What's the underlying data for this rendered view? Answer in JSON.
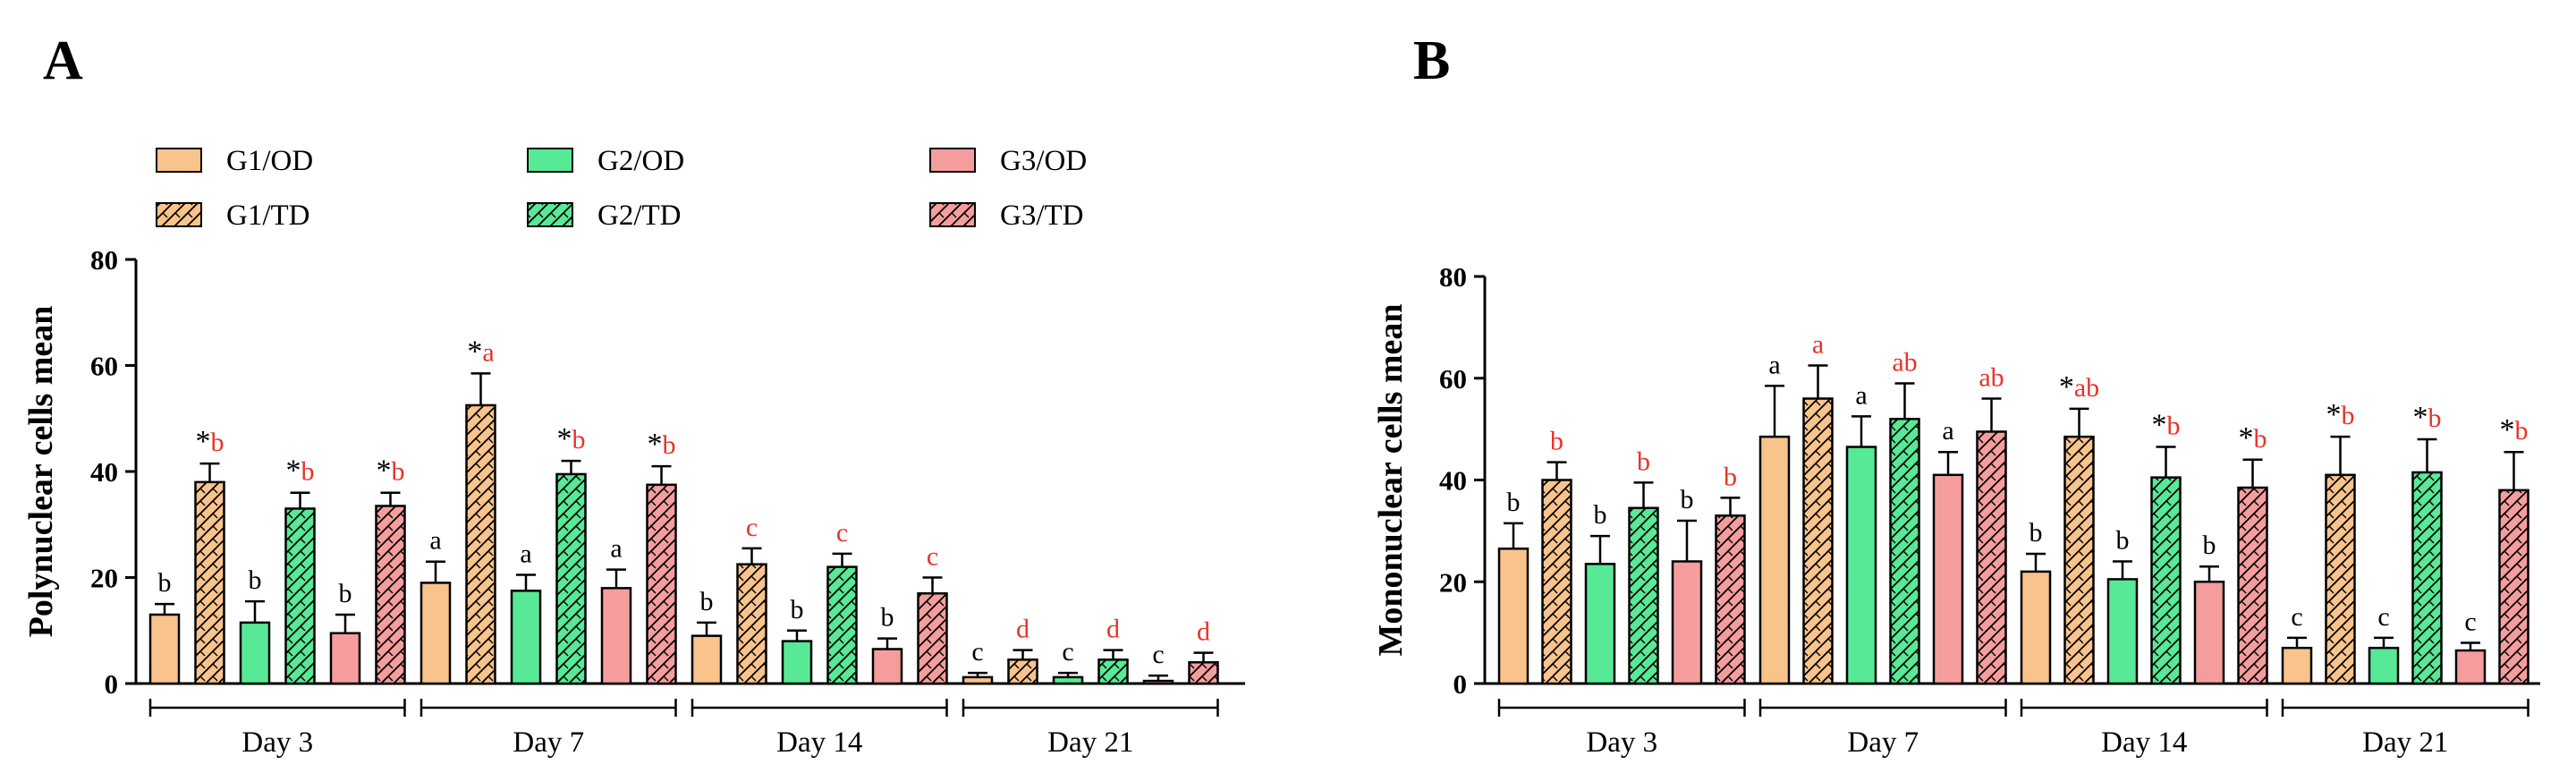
{
  "figure": {
    "panel_a_label": "A",
    "panel_b_label": "B"
  },
  "colors": {
    "G1": "#f9c38c",
    "G2": "#57e995",
    "G3": "#f59d9d",
    "letter_black": "#000000",
    "letter_red": "#e8332a"
  },
  "legend": [
    {
      "label": "G1/OD",
      "group": "G1",
      "pattern": false
    },
    {
      "label": "G1/TD",
      "group": "G1",
      "pattern": true
    },
    {
      "label": "G2/OD",
      "group": "G2",
      "pattern": false
    },
    {
      "label": "G2/TD",
      "group": "G2",
      "pattern": true
    },
    {
      "label": "G3/OD",
      "group": "G3",
      "pattern": false
    },
    {
      "label": "G3/TD",
      "group": "G3",
      "pattern": true
    }
  ],
  "chart_data": [
    {
      "type": "bar",
      "panel": "A",
      "ylabel": "Polynuclear cells mean",
      "xlabel": "",
      "ylim": [
        0,
        80
      ],
      "yticks": [
        0,
        20,
        40,
        60,
        80
      ],
      "categories": [
        "Day 3",
        "Day 7",
        "Day 14",
        "Day 21"
      ],
      "series": [
        {
          "name": "G1/OD",
          "values": [
            13,
            19,
            9,
            1.2
          ],
          "errors": [
            2,
            4,
            2.5,
            0.8
          ],
          "labels": [
            "b",
            "a",
            "b",
            "c"
          ]
        },
        {
          "name": "G1/TD",
          "values": [
            38,
            52.5,
            22.5,
            4.5
          ],
          "errors": [
            3.5,
            6,
            3,
            1.8
          ],
          "labels": [
            "*b",
            "*a",
            "c",
            "d"
          ]
        },
        {
          "name": "G2/OD",
          "values": [
            11.5,
            17.5,
            8,
            1.2
          ],
          "errors": [
            4,
            3,
            2,
            0.8
          ],
          "labels": [
            "b",
            "a",
            "b",
            "c"
          ]
        },
        {
          "name": "G2/TD",
          "values": [
            33,
            39.5,
            22,
            4.5
          ],
          "errors": [
            3,
            2.5,
            2.5,
            1.8
          ],
          "labels": [
            "*b",
            "*b",
            "c",
            "d"
          ]
        },
        {
          "name": "G3/OD",
          "values": [
            9.5,
            18,
            6.5,
            0.5
          ],
          "errors": [
            3.5,
            3.5,
            2,
            1
          ],
          "labels": [
            "b",
            "a",
            "b",
            "c"
          ]
        },
        {
          "name": "G3/TD",
          "values": [
            33.5,
            37.5,
            17,
            4
          ],
          "errors": [
            2.5,
            3.5,
            3,
            1.8
          ],
          "labels": [
            "*b",
            "*b",
            "c",
            "d"
          ]
        }
      ]
    },
    {
      "type": "bar",
      "panel": "B",
      "ylabel": "Mononuclear cells mean",
      "xlabel": "",
      "ylim": [
        0,
        80
      ],
      "yticks": [
        0,
        20,
        40,
        60,
        80
      ],
      "categories": [
        "Day 3",
        "Day 7",
        "Day 14",
        "Day 21"
      ],
      "series": [
        {
          "name": "G1/OD",
          "values": [
            26.5,
            48.5,
            22,
            7
          ],
          "errors": [
            5,
            10,
            3.5,
            2
          ]
        },
        {
          "name": "G1/TD",
          "values": [
            40,
            56,
            48.5,
            41
          ],
          "errors": [
            3.5,
            6.5,
            5.5,
            7.5
          ]
        },
        {
          "name": "G2/OD",
          "values": [
            23.5,
            46.5,
            20.5,
            7
          ],
          "errors": [
            5.5,
            6,
            3.5,
            2
          ]
        },
        {
          "name": "G2/TD",
          "values": [
            34.5,
            52,
            40.5,
            41.5
          ],
          "errors": [
            5,
            7,
            6,
            6.5
          ]
        },
        {
          "name": "G3/OD",
          "values": [
            24,
            41,
            20,
            6.5
          ],
          "errors": [
            8,
            4.5,
            3,
            1.5
          ]
        },
        {
          "name": "G3/TD",
          "values": [
            33,
            49.5,
            38.5,
            38
          ],
          "errors": [
            3.5,
            6.5,
            5.5,
            7.5
          ]
        }
      ],
      "labels": [
        [
          "b",
          "a",
          "b",
          "c"
        ],
        [
          "b",
          "a",
          "*ab",
          "*b"
        ],
        [
          "b",
          "a",
          "b",
          "c"
        ],
        [
          "b",
          "ab",
          "*b",
          "*b"
        ],
        [
          "b",
          "a",
          "b",
          "c"
        ],
        [
          "b",
          "ab",
          "*b",
          "*b"
        ]
      ]
    }
  ]
}
